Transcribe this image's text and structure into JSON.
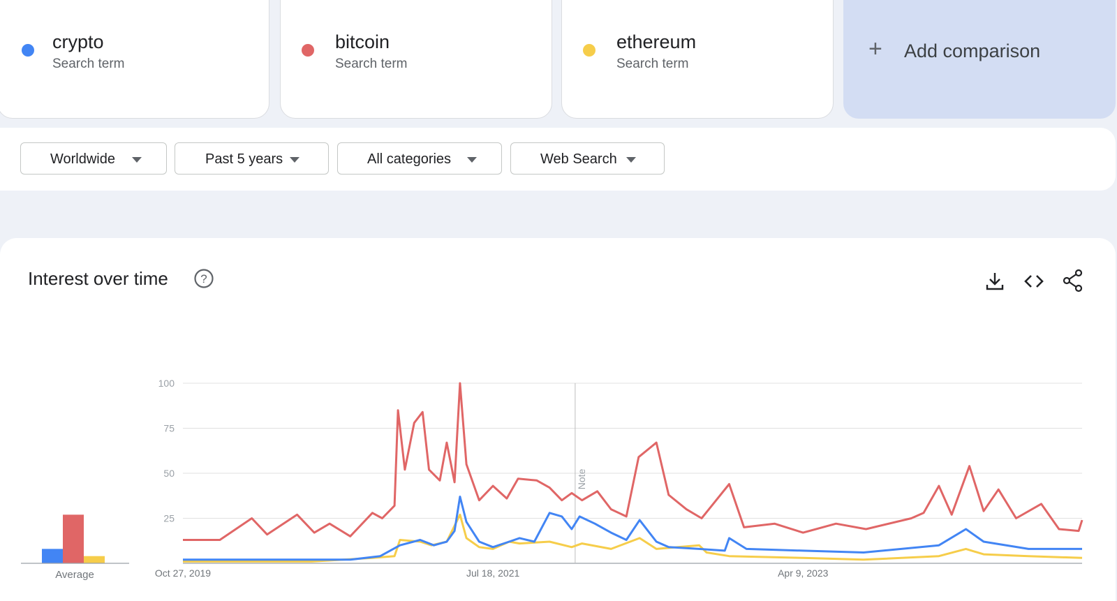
{
  "terms": [
    {
      "name": "crypto",
      "sub": "Search term",
      "color": "#4285f4"
    },
    {
      "name": "bitcoin",
      "sub": "Search term",
      "color": "#e06666"
    },
    {
      "name": "ethereum",
      "sub": "Search term",
      "color": "#f6cd4a"
    }
  ],
  "add_comparison": {
    "label": "Add comparison"
  },
  "filters": {
    "region": "Worldwide",
    "time": "Past 5 years",
    "category": "All categories",
    "search_type": "Web Search"
  },
  "panel": {
    "title": "Interest over time",
    "icons": [
      "help-icon",
      "download-icon",
      "embed-code-icon",
      "share-icon"
    ]
  },
  "chart_data": {
    "type": "line",
    "ylim": [
      0,
      100
    ],
    "yticks": [
      25,
      50,
      75,
      100
    ],
    "xticks": [
      "Oct 27, 2019",
      "Jul 18, 2021",
      "Apr 9, 2023"
    ],
    "xrange": [
      "2019-10-27",
      "2024-10-27"
    ],
    "note_label": "Note",
    "note_date": "2022-01-01",
    "grid": true,
    "average_bars": {
      "label": "Average",
      "values": [
        {
          "series": "crypto",
          "value": 8
        },
        {
          "series": "bitcoin",
          "value": 27
        },
        {
          "series": "ethereum",
          "value": 4
        }
      ]
    },
    "series": [
      {
        "name": "crypto",
        "color": "#4285f4",
        "points": [
          [
            "2019-10-27",
            2
          ],
          [
            "2020-06-01",
            2
          ],
          [
            "2020-10-01",
            2
          ],
          [
            "2020-12-01",
            4
          ],
          [
            "2021-01-10",
            10
          ],
          [
            "2021-02-20",
            13
          ],
          [
            "2021-03-20",
            10
          ],
          [
            "2021-04-15",
            12
          ],
          [
            "2021-05-01",
            18
          ],
          [
            "2021-05-12",
            37
          ],
          [
            "2021-05-25",
            23
          ],
          [
            "2021-06-20",
            12
          ],
          [
            "2021-07-18",
            9
          ],
          [
            "2021-08-20",
            12
          ],
          [
            "2021-09-10",
            14
          ],
          [
            "2021-10-10",
            12
          ],
          [
            "2021-11-10",
            28
          ],
          [
            "2021-12-05",
            26
          ],
          [
            "2021-12-25",
            19
          ],
          [
            "2022-01-10",
            26
          ],
          [
            "2022-02-10",
            22
          ],
          [
            "2022-03-15",
            17
          ],
          [
            "2022-04-15",
            13
          ],
          [
            "2022-05-12",
            24
          ],
          [
            "2022-06-15",
            12
          ],
          [
            "2022-07-10",
            9
          ],
          [
            "2022-09-10",
            8
          ],
          [
            "2022-11-01",
            7
          ],
          [
            "2022-11-10",
            14
          ],
          [
            "2022-12-15",
            8
          ],
          [
            "2023-04-09",
            7
          ],
          [
            "2023-08-10",
            6
          ],
          [
            "2024-01-10",
            10
          ],
          [
            "2024-03-05",
            19
          ],
          [
            "2024-04-10",
            12
          ],
          [
            "2024-07-10",
            8
          ],
          [
            "2024-10-27",
            8
          ]
        ]
      },
      {
        "name": "bitcoin",
        "color": "#e06666",
        "points": [
          [
            "2019-10-27",
            13
          ],
          [
            "2020-01-10",
            13
          ],
          [
            "2020-03-15",
            25
          ],
          [
            "2020-04-15",
            16
          ],
          [
            "2020-06-15",
            27
          ],
          [
            "2020-07-20",
            17
          ],
          [
            "2020-08-20",
            22
          ],
          [
            "2020-10-01",
            15
          ],
          [
            "2020-11-15",
            28
          ],
          [
            "2020-12-05",
            25
          ],
          [
            "2020-12-30",
            32
          ],
          [
            "2021-01-06",
            85
          ],
          [
            "2021-01-20",
            52
          ],
          [
            "2021-02-08",
            78
          ],
          [
            "2021-02-25",
            84
          ],
          [
            "2021-03-10",
            52
          ],
          [
            "2021-04-01",
            46
          ],
          [
            "2021-04-15",
            67
          ],
          [
            "2021-05-01",
            45
          ],
          [
            "2021-05-12",
            100
          ],
          [
            "2021-05-25",
            55
          ],
          [
            "2021-06-20",
            35
          ],
          [
            "2021-07-18",
            43
          ],
          [
            "2021-08-15",
            36
          ],
          [
            "2021-09-07",
            47
          ],
          [
            "2021-10-15",
            46
          ],
          [
            "2021-11-10",
            42
          ],
          [
            "2021-12-05",
            35
          ],
          [
            "2021-12-25",
            39
          ],
          [
            "2022-01-15",
            35
          ],
          [
            "2022-02-15",
            40
          ],
          [
            "2022-03-15",
            30
          ],
          [
            "2022-04-15",
            26
          ],
          [
            "2022-05-10",
            59
          ],
          [
            "2022-06-15",
            67
          ],
          [
            "2022-07-10",
            38
          ],
          [
            "2022-08-15",
            30
          ],
          [
            "2022-09-15",
            25
          ],
          [
            "2022-11-10",
            44
          ],
          [
            "2022-12-10",
            20
          ],
          [
            "2023-02-10",
            22
          ],
          [
            "2023-04-09",
            17
          ],
          [
            "2023-06-15",
            22
          ],
          [
            "2023-08-15",
            19
          ],
          [
            "2023-11-15",
            25
          ],
          [
            "2023-12-10",
            28
          ],
          [
            "2024-01-10",
            43
          ],
          [
            "2024-02-05",
            27
          ],
          [
            "2024-03-12",
            54
          ],
          [
            "2024-04-10",
            29
          ],
          [
            "2024-05-10",
            41
          ],
          [
            "2024-06-15",
            25
          ],
          [
            "2024-08-05",
            33
          ],
          [
            "2024-09-10",
            19
          ],
          [
            "2024-10-20",
            18
          ],
          [
            "2024-10-27",
            24
          ]
        ]
      },
      {
        "name": "ethereum",
        "color": "#f6cd4a",
        "points": [
          [
            "2019-10-27",
            1
          ],
          [
            "2020-04-15",
            1
          ],
          [
            "2020-07-15",
            1
          ],
          [
            "2020-11-15",
            3
          ],
          [
            "2020-12-30",
            4
          ],
          [
            "2021-01-10",
            13
          ],
          [
            "2021-02-20",
            12
          ],
          [
            "2021-03-15",
            10
          ],
          [
            "2021-04-15",
            12
          ],
          [
            "2021-05-12",
            27
          ],
          [
            "2021-05-25",
            14
          ],
          [
            "2021-06-20",
            9
          ],
          [
            "2021-07-18",
            8
          ],
          [
            "2021-08-20",
            12
          ],
          [
            "2021-09-10",
            11
          ],
          [
            "2021-11-10",
            12
          ],
          [
            "2021-12-25",
            9
          ],
          [
            "2022-01-15",
            11
          ],
          [
            "2022-03-15",
            8
          ],
          [
            "2022-05-12",
            14
          ],
          [
            "2022-06-15",
            8
          ],
          [
            "2022-09-10",
            10
          ],
          [
            "2022-09-25",
            6
          ],
          [
            "2022-11-10",
            4
          ],
          [
            "2023-04-09",
            3
          ],
          [
            "2023-08-10",
            2
          ],
          [
            "2024-01-10",
            4
          ],
          [
            "2024-03-05",
            8
          ],
          [
            "2024-04-10",
            5
          ],
          [
            "2024-07-10",
            4
          ],
          [
            "2024-10-27",
            3
          ]
        ]
      }
    ]
  }
}
